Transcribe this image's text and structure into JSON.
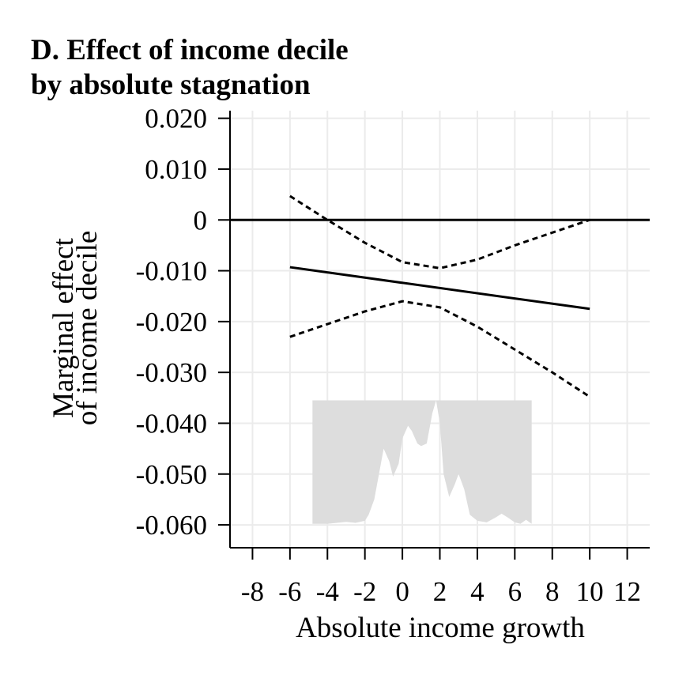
{
  "chart_data": {
    "type": "line",
    "title_lines": [
      "D. Effect of income decile",
      "by absolute stagnation"
    ],
    "xlabel": "Absolute income growth",
    "ylabel_lines": [
      "Marginal effect",
      "of income decile"
    ],
    "xlim": [
      -9.2,
      13.2
    ],
    "ylim": [
      -0.0645,
      0.0215
    ],
    "x_ticks": [
      -8,
      -6,
      -4,
      -2,
      0,
      2,
      4,
      6,
      8,
      10,
      12
    ],
    "x_tick_labels": [
      "-8",
      "-6",
      "-4",
      "-2",
      "0",
      "2",
      "4",
      "6",
      "8",
      "10",
      "12"
    ],
    "y_ticks": [
      0.02,
      0.01,
      0,
      -0.01,
      -0.02,
      -0.03,
      -0.04,
      -0.05,
      -0.06
    ],
    "y_tick_labels": [
      "0.020",
      "0.010",
      "0",
      "-0.010",
      "-0.020",
      "-0.030",
      "-0.040",
      "-0.050",
      "-0.060"
    ],
    "grid": true,
    "reference_line": {
      "y": 0,
      "style": "solid"
    },
    "series": [
      {
        "role": "estimate",
        "style": "solid",
        "color": "#000000",
        "x": [
          -6,
          10
        ],
        "y": [
          -0.0093,
          -0.0175
        ]
      },
      {
        "role": "upper_ci",
        "style": "dashed",
        "color": "#000000",
        "x": [
          -6,
          -4,
          -2,
          0,
          2,
          4,
          6,
          8,
          10
        ],
        "y": [
          0.0047,
          0.0,
          -0.0045,
          -0.0083,
          -0.0095,
          -0.0078,
          -0.005,
          -0.0025,
          0.0
        ]
      },
      {
        "role": "lower_ci",
        "style": "dashed",
        "color": "#000000",
        "x": [
          -6,
          -4,
          -2,
          0,
          2,
          4,
          6,
          8,
          10
        ],
        "y": [
          -0.023,
          -0.0205,
          -0.018,
          -0.016,
          -0.0172,
          -0.021,
          -0.0255,
          -0.03,
          -0.0348
        ]
      },
      {
        "role": "distribution",
        "style": "area",
        "color": "#dddddd",
        "x": [
          -4.8,
          -4,
          -3.5,
          -3,
          -2.5,
          -2,
          -1.8,
          -1.5,
          -1.2,
          -1,
          -0.7,
          -0.5,
          -0.2,
          0,
          0.3,
          0.5,
          0.8,
          1.0,
          1.3,
          1.6,
          1.8,
          2.0,
          2.2,
          2.5,
          2.8,
          3.0,
          3.3,
          3.6,
          4.0,
          4.5,
          5.0,
          5.3,
          5.6,
          6.0,
          6.3,
          6.6,
          6.9
        ],
        "y": [
          -0.0598,
          -0.0598,
          -0.0596,
          -0.0594,
          -0.0596,
          -0.0592,
          -0.058,
          -0.055,
          -0.049,
          -0.045,
          -0.0475,
          -0.0505,
          -0.048,
          -0.043,
          -0.0405,
          -0.0415,
          -0.044,
          -0.0445,
          -0.044,
          -0.038,
          -0.0355,
          -0.04,
          -0.05,
          -0.0545,
          -0.052,
          -0.05,
          -0.053,
          -0.058,
          -0.0592,
          -0.0595,
          -0.0585,
          -0.0578,
          -0.0585,
          -0.0595,
          -0.0598,
          -0.059,
          -0.0598
        ]
      }
    ]
  }
}
